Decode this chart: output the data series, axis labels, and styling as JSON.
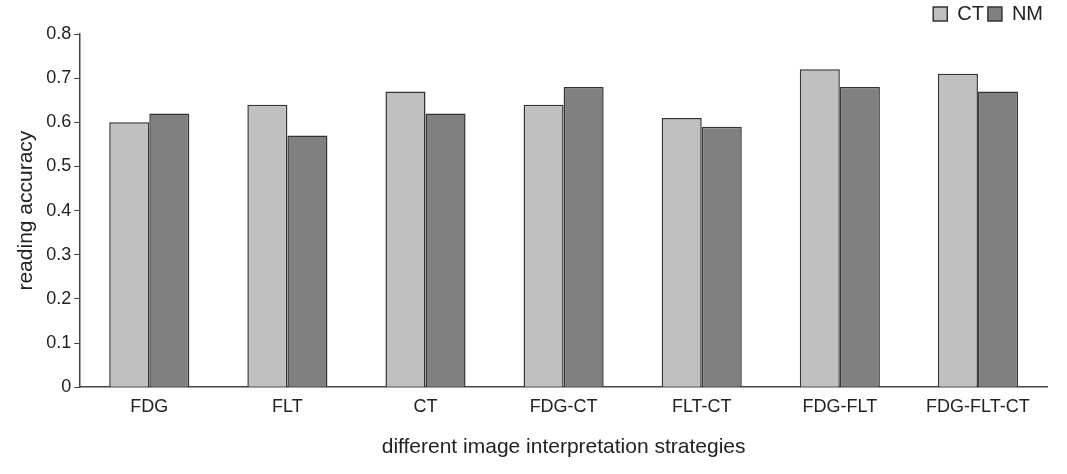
{
  "chart_data": {
    "type": "bar",
    "xlabel": "different image interpretation strategies",
    "ylabel": "reading accuracy",
    "categories": [
      "FDG",
      "FLT",
      "CT",
      "FDG-CT",
      "FLT-CT",
      "FDG-FLT",
      "FDG-FLT-CT"
    ],
    "series": [
      {
        "name": "CT",
        "color": "#c0c0c0",
        "values": [
          0.6,
          0.64,
          0.67,
          0.64,
          0.61,
          0.72,
          0.71
        ]
      },
      {
        "name": "NM",
        "color": "#808080",
        "values": [
          0.62,
          0.57,
          0.62,
          0.68,
          0.59,
          0.68,
          0.67
        ]
      }
    ],
    "ylim": [
      0,
      0.8
    ],
    "yticks": [
      0,
      0.1,
      0.2,
      0.3,
      0.4,
      0.5,
      0.6,
      0.7,
      0.8
    ],
    "grid": false,
    "legend": "top right"
  }
}
